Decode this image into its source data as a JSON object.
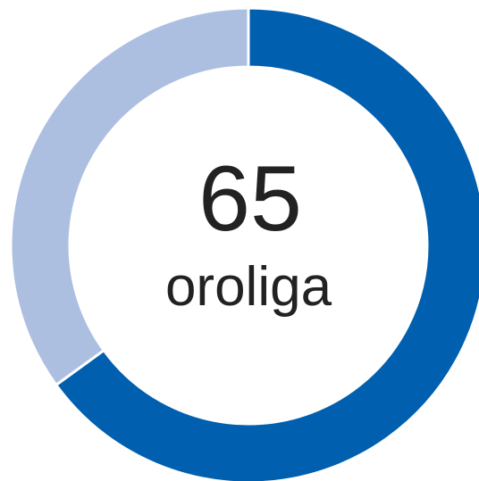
{
  "chart_data": {
    "type": "donut",
    "values": [
      65,
      35
    ],
    "colors": [
      "#005fae",
      "#adbfe0"
    ],
    "center_label": "oroliga"
  }
}
